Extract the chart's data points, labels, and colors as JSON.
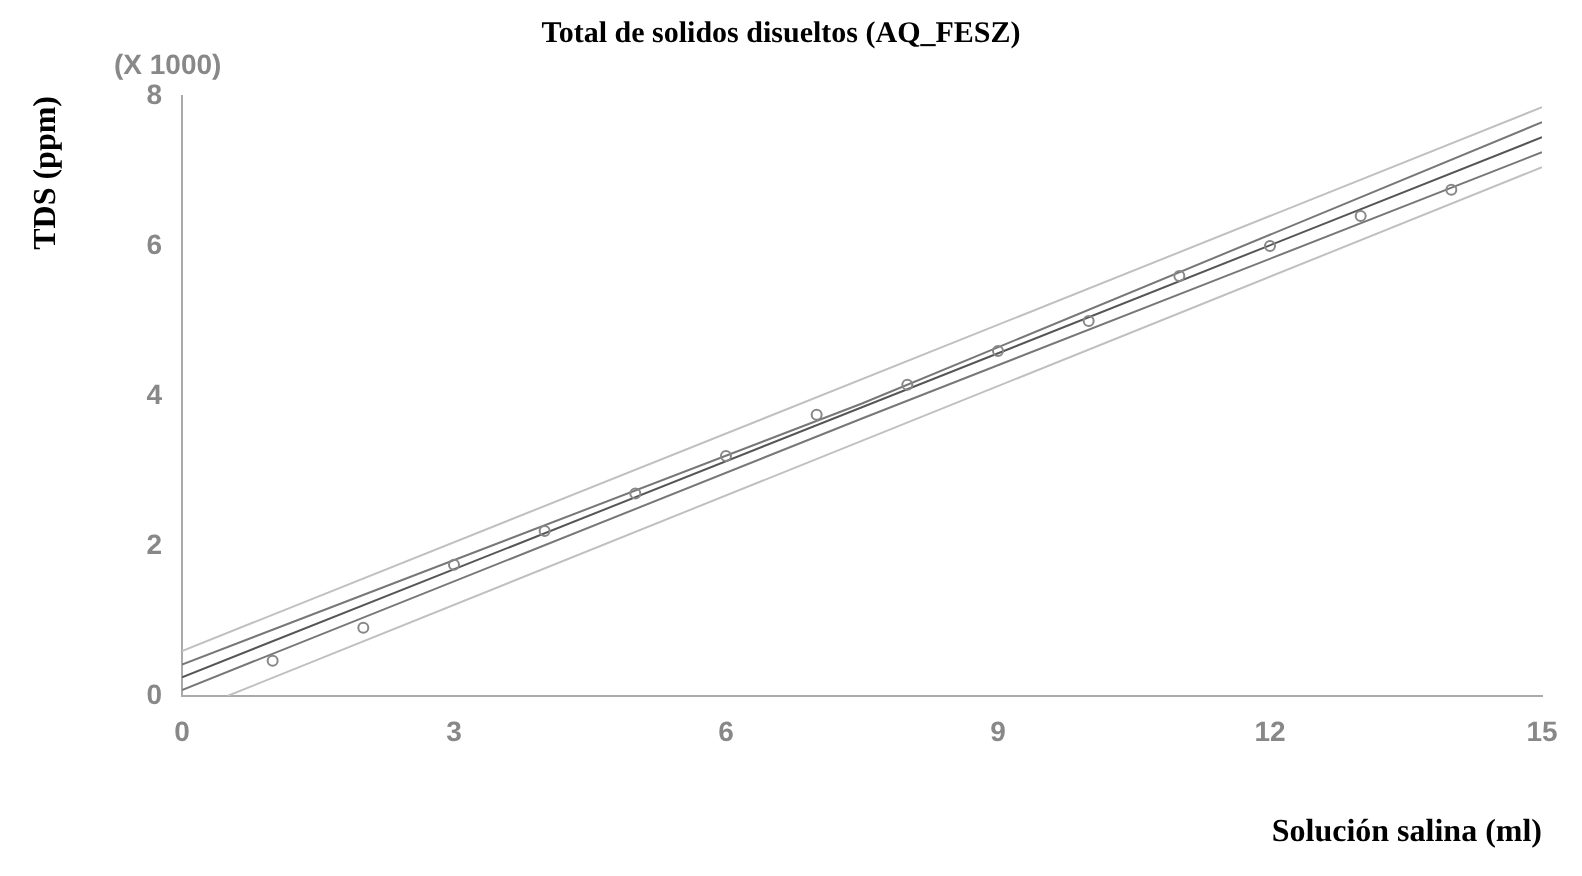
{
  "chart_data": {
    "type": "scatter",
    "title": "Total de solidos disueltos (AQ_FESZ)",
    "xlabel": "Solución salina (ml)",
    "ylabel": "TDS (ppm)",
    "annotations": [
      "(X 1000)"
    ],
    "xlim": [
      0,
      15
    ],
    "xticks": [
      0,
      3,
      6,
      9,
      12,
      15
    ],
    "ylim": [
      0,
      8
    ],
    "yticks": [
      0,
      2,
      4,
      6,
      8
    ],
    "grid": false,
    "legend": false,
    "series": [
      {
        "type": "scatter",
        "color": "#888888",
        "marker": "circle",
        "x": [
          1,
          2,
          3,
          4,
          5,
          6,
          7,
          8,
          9,
          10,
          11,
          12,
          13,
          14
        ],
        "values": [
          0.47,
          0.91,
          1.75,
          2.2,
          2.7,
          3.2,
          3.75,
          4.15,
          4.6,
          5.0,
          5.6,
          6.0,
          6.4,
          6.75
        ]
      },
      {
        "type": "line",
        "color": "#555555",
        "marker": "none",
        "x": [
          0,
          15
        ],
        "values": [
          0.25,
          7.45
        ]
      },
      {
        "type": "line",
        "color": "#777777",
        "marker": "none",
        "x": [
          0,
          7.5,
          15
        ],
        "values": [
          0.42,
          3.9,
          7.65
        ]
      },
      {
        "type": "line",
        "color": "#777777",
        "marker": "none",
        "x": [
          0,
          7.5,
          15
        ],
        "values": [
          0.08,
          3.7,
          7.25
        ]
      },
      {
        "type": "line",
        "color": "#c0c0c0",
        "marker": "none",
        "x": [
          0,
          15
        ],
        "values": [
          0.6,
          7.85
        ]
      },
      {
        "type": "line",
        "color": "#c0c0c0",
        "marker": "none",
        "x": [
          0.5,
          15
        ],
        "values": [
          0.0,
          7.05
        ]
      }
    ]
  }
}
